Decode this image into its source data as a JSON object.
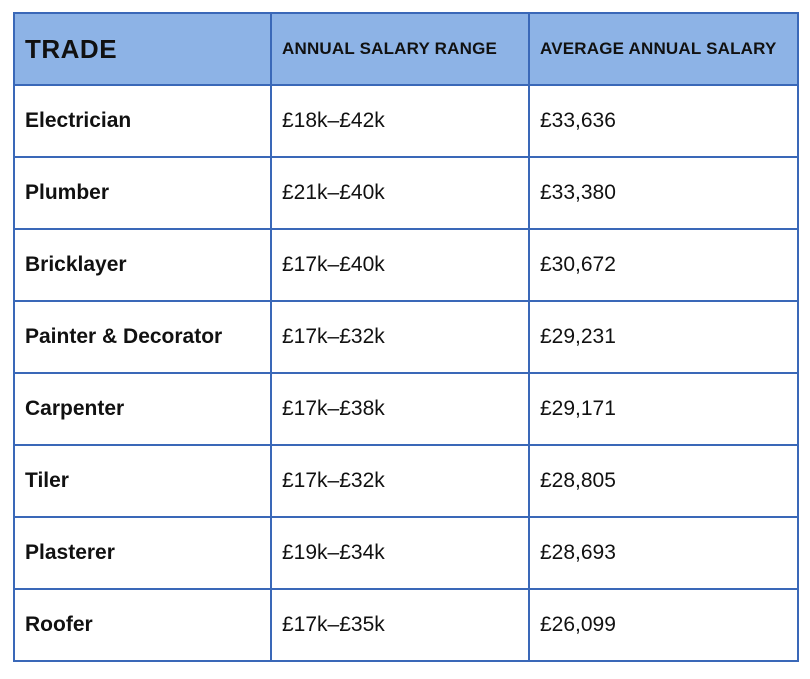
{
  "table": {
    "headers": [
      "TRADE",
      "ANNUAL SALARY RANGE",
      "AVERAGE ANNUAL SALARY"
    ],
    "rows": [
      {
        "trade": "Electrician",
        "range": "£18k–£42k",
        "average": "£33,636"
      },
      {
        "trade": "Plumber",
        "range": "£21k–£40k",
        "average": "£33,380"
      },
      {
        "trade": "Bricklayer",
        "range": "£17k–£40k",
        "average": "£30,672"
      },
      {
        "trade": "Painter & Decorator",
        "range": "£17k–£32k",
        "average": "£29,231"
      },
      {
        "trade": "Carpenter",
        "range": "£17k–£38k",
        "average": "£29,171"
      },
      {
        "trade": "Tiler",
        "range": "£17k–£32k",
        "average": "£28,805"
      },
      {
        "trade": "Plasterer",
        "range": "£19k–£34k",
        "average": "£28,693"
      },
      {
        "trade": "Roofer",
        "range": "£17k–£35k",
        "average": "£26,099"
      }
    ]
  },
  "colors": {
    "header_background": "#8db3e6",
    "border": "#3a68b8",
    "text": "#111111"
  }
}
